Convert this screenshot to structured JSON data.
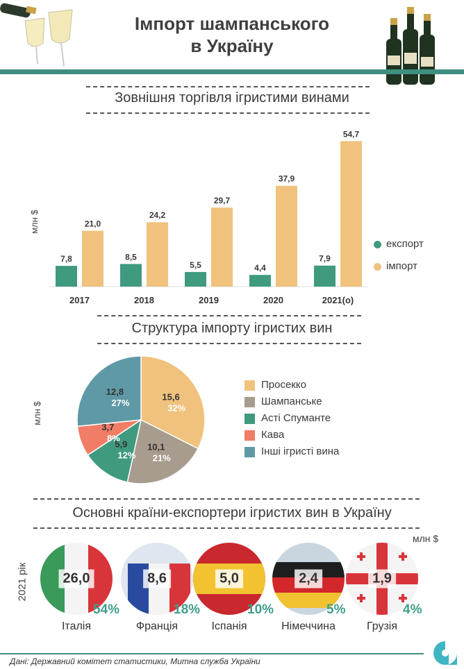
{
  "header": {
    "title_line1": "Імпорт шампанського",
    "title_line2": "в Україну"
  },
  "section1": {
    "title": "Зовнішня торгівля ігристими винами",
    "unit": "млн $",
    "legend": [
      "експорт",
      "імпорт"
    ]
  },
  "section2": {
    "title": "Структура імпорту ігристих вин",
    "unit": "млн $"
  },
  "section3": {
    "title": "Основні країни-експортери ігристих вин в Україну",
    "unit": "млн $",
    "year_label": "2021 рік",
    "countries": [
      {
        "name": "Італія",
        "value": "26,0",
        "share": "54%"
      },
      {
        "name": "Франція",
        "value": "8,6",
        "share": "18%"
      },
      {
        "name": "Іспанія",
        "value": "5,0",
        "share": "10%"
      },
      {
        "name": "Німеччина",
        "value": "2,4",
        "share": "5%"
      },
      {
        "name": "Грузія",
        "value": "1,9",
        "share": "4%"
      }
    ]
  },
  "footer": {
    "source": "Дані: Державний комітет статистики, Митна служба України"
  },
  "colors": {
    "export": "#3f9a80",
    "import": "#f0c27d",
    "accent": "#3f8f7f"
  },
  "chart_data": [
    {
      "type": "bar",
      "title": "Зовнішня торгівля ігристими винами",
      "ylabel": "млн $",
      "categories": [
        "2017",
        "2018",
        "2019",
        "2020",
        "2021(о)"
      ],
      "series": [
        {
          "name": "експорт",
          "values": [
            7.8,
            8.5,
            5.5,
            4.4,
            7.9
          ],
          "labels": [
            "7,8",
            "8,5",
            "5,5",
            "4,4",
            "7,9"
          ],
          "color": "#3f9a80"
        },
        {
          "name": "імпорт",
          "values": [
            21.0,
            24.2,
            29.7,
            37.9,
            54.7
          ],
          "labels": [
            "21,0",
            "24,2",
            "29,7",
            "37,9",
            "54,7"
          ],
          "color": "#f0c27d"
        }
      ],
      "ylim": [
        0,
        60
      ],
      "legend": "right"
    },
    {
      "type": "pie",
      "title": "Структура імпорту ігристих вин",
      "ylabel": "млн $",
      "slices": [
        {
          "name": "Просекко",
          "value": 15.6,
          "value_label": "15,6",
          "pct": "32%",
          "color": "#f0c27d"
        },
        {
          "name": "Шампанське",
          "value": 10.1,
          "value_label": "10,1",
          "pct": "21%",
          "color": "#a89c8e"
        },
        {
          "name": "Асті Спуманте",
          "value": 5.9,
          "value_label": "5,9",
          "pct": "12%",
          "color": "#3f9a80"
        },
        {
          "name": "Кава",
          "value": 3.7,
          "value_label": "3,7",
          "pct": "8%",
          "color": "#f27d66"
        },
        {
          "name": "Інші ігристі вина",
          "value": 12.8,
          "value_label": "12,8",
          "pct": "27%",
          "color": "#5f99a6"
        }
      ],
      "legend": "right"
    }
  ]
}
